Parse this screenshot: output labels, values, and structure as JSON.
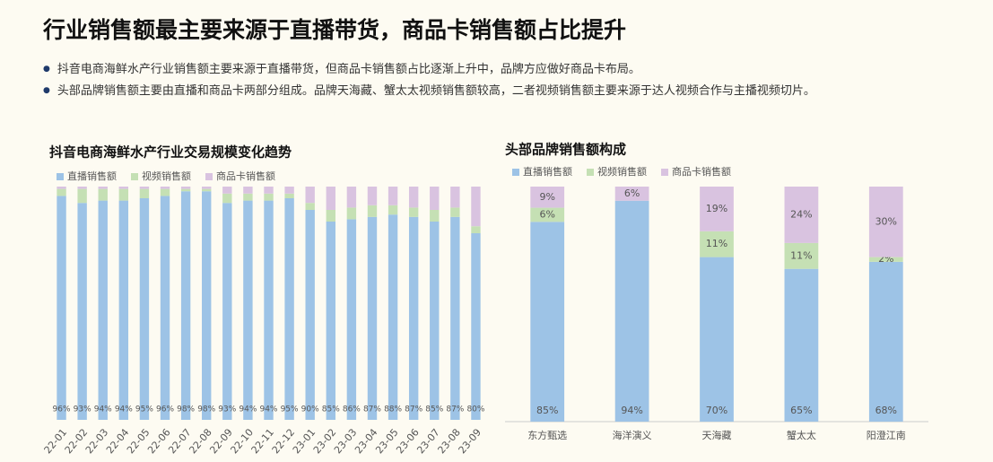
{
  "header": {
    "title": "行业销售额最主要来源于直播带货，商品卡销售额占比提升",
    "bullets": [
      "抖音电商海鲜水产行业销售额主要来源于直播带货，但商品卡销售额占比逐渐上升中，品牌方应做好商品卡布局。",
      "头部品牌销售额主要由直播和商品卡两部分组成。品牌天海藏、蟹太太视频销售额较高，二者视频销售额主要来源于达人视频合作与主播视频切片。"
    ]
  },
  "chart_data": [
    {
      "type": "bar",
      "stacked": true,
      "title": "抖音电商海鲜水产行业交易规模变化趋势",
      "categories": [
        "22-01",
        "22-02",
        "22-03",
        "22-04",
        "22-05",
        "22-06",
        "22-07",
        "22-08",
        "22-09",
        "22-10",
        "22-11",
        "22-12",
        "23-01",
        "23-02",
        "23-03",
        "23-04",
        "23-05",
        "23-06",
        "23-07",
        "23-08",
        "23-09"
      ],
      "ylim": [
        0,
        100
      ],
      "series": [
        {
          "name": "直播销售额",
          "color": "#9dc3e6",
          "values": [
            96,
            93,
            94,
            94,
            95,
            96,
            98,
            98,
            93,
            94,
            94,
            95,
            90,
            85,
            86,
            87,
            88,
            87,
            85,
            87,
            80
          ],
          "value_labels": [
            "96%",
            "93%",
            "94%",
            "94%",
            "95%",
            "96%",
            "98%",
            "98%",
            "93%",
            "94%",
            "94%",
            "95%",
            "90%",
            "85%",
            "86%",
            "87%",
            "88%",
            "87%",
            "85%",
            "87%",
            "80%"
          ]
        },
        {
          "name": "视频销售额",
          "color": "#c5e0b4",
          "values": [
            3,
            6,
            5,
            5,
            4,
            3,
            1,
            1,
            4,
            3,
            3,
            2,
            3,
            5,
            5,
            5,
            4,
            4,
            5,
            4,
            3
          ]
        },
        {
          "name": "商品卡销售额",
          "color": "#d9c3e0",
          "values": [
            1,
            1,
            1,
            1,
            1,
            1,
            1,
            1,
            3,
            3,
            3,
            3,
            7,
            10,
            9,
            8,
            8,
            9,
            10,
            9,
            17
          ]
        }
      ]
    },
    {
      "type": "bar",
      "stacked": true,
      "title": "头部品牌销售额构成",
      "categories": [
        "东方甄选",
        "海洋演义",
        "天海藏",
        "蟹太太",
        "阳澄江南"
      ],
      "ylim": [
        0,
        100
      ],
      "series": [
        {
          "name": "直播销售额",
          "color": "#9dc3e6",
          "values": [
            85,
            94,
            70,
            65,
            68
          ],
          "value_labels": [
            "85%",
            "94%",
            "70%",
            "65%",
            "68%"
          ]
        },
        {
          "name": "视频销售额",
          "color": "#c5e0b4",
          "values": [
            6,
            0,
            11,
            11,
            2
          ],
          "value_labels": [
            "6%",
            null,
            "11%",
            "11%",
            "2%"
          ]
        },
        {
          "name": "商品卡销售额",
          "color": "#d9c3e0",
          "values": [
            9,
            6,
            19,
            24,
            30
          ],
          "value_labels": [
            "9%",
            "6%",
            "19%",
            "24%",
            "30%"
          ]
        }
      ]
    }
  ]
}
